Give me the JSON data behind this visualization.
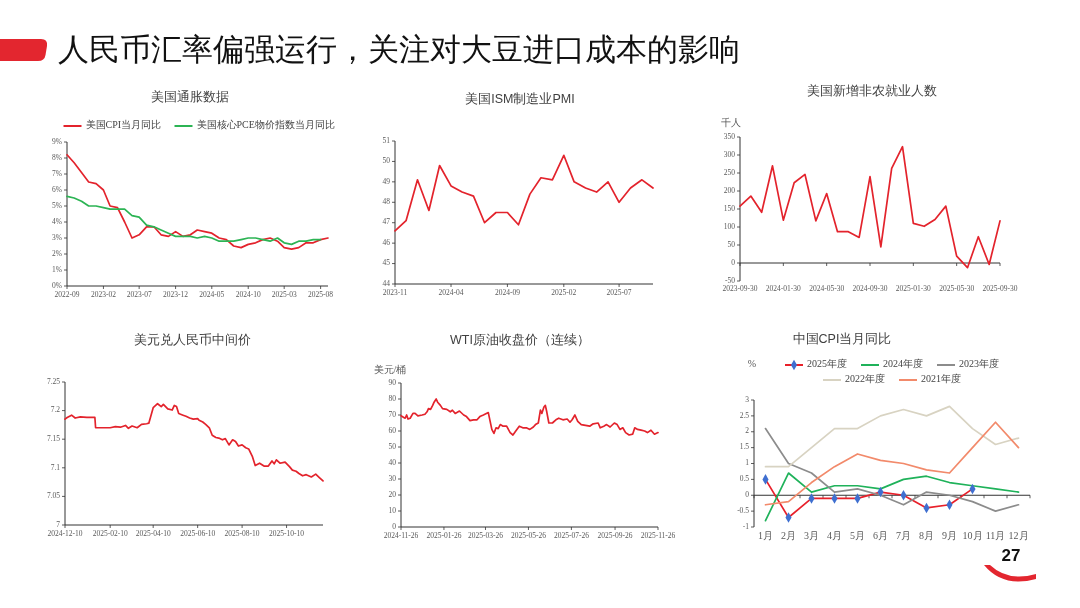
{
  "chart_data": [
    {
      "type": "other",
      "title": "人民币汇率偏强运行，关注对大豆进口成本的影响",
      "annotations": [
        "27"
      ]
    },
    {
      "type": "line",
      "title": "美国通胀数据",
      "legend": "top",
      "x": [
        "2022-09",
        "2022-10",
        "2022-11",
        "2022-12",
        "2023-01",
        "2023-02",
        "2023-03",
        "2023-04",
        "2023-05",
        "2023-06",
        "2023-07",
        "2023-08",
        "2023-09",
        "2023-10",
        "2023-11",
        "2023-12",
        "2024-01",
        "2024-02",
        "2024-03",
        "2024-04",
        "2024-05",
        "2024-06",
        "2024-07",
        "2024-08",
        "2024-09",
        "2024-10",
        "2024-11",
        "2024-12",
        "2025-01",
        "2025-02",
        "2025-03",
        "2025-04",
        "2025-05",
        "2025-06",
        "2025-07",
        "2025-08",
        "2025-09"
      ],
      "series": [
        {
          "name": "美国CPI当月同比",
          "color": "#e3232c",
          "values": [
            8.2,
            7.7,
            7.1,
            6.5,
            6.4,
            6.0,
            5.0,
            4.9,
            4.0,
            3.0,
            3.2,
            3.7,
            3.7,
            3.2,
            3.1,
            3.4,
            3.1,
            3.2,
            3.5,
            3.4,
            3.3,
            3.0,
            2.9,
            2.5,
            2.4,
            2.6,
            2.7,
            2.9,
            3.0,
            2.8,
            2.4,
            2.3,
            2.4,
            2.7,
            2.7,
            2.9,
            3.0
          ]
        },
        {
          "name": "美国核心PCE物价指数当月同比",
          "color": "#2cb454",
          "values": [
            5.6,
            5.5,
            5.3,
            5.0,
            5.0,
            4.9,
            4.8,
            4.8,
            4.8,
            4.4,
            4.3,
            3.8,
            3.7,
            3.5,
            3.3,
            3.1,
            3.1,
            3.1,
            3.0,
            3.1,
            3.0,
            2.8,
            2.8,
            2.8,
            2.9,
            3.0,
            3.0,
            2.9,
            2.8,
            3.0,
            2.7,
            2.6,
            2.8,
            2.8,
            2.9,
            2.9,
            null
          ]
        }
      ],
      "xlim": [
        "2022-09",
        "2025-09"
      ],
      "xticks": [
        "2022-09",
        "2023-02",
        "2023-07",
        "2023-12",
        "2024-05",
        "2024-10",
        "2025-03",
        "2025-08"
      ],
      "ylim": [
        0,
        9
      ],
      "yticks": [
        {
          "value": 0,
          "label": "0%"
        },
        {
          "value": 1,
          "label": "1%"
        },
        {
          "value": 2,
          "label": "2%"
        },
        {
          "value": 3,
          "label": "3%"
        },
        {
          "value": 4,
          "label": "4%"
        },
        {
          "value": 5,
          "label": "5%"
        },
        {
          "value": 6,
          "label": "6%"
        },
        {
          "value": 7,
          "label": "7%"
        },
        {
          "value": 8,
          "label": "8%"
        },
        {
          "value": 9,
          "label": "9%"
        }
      ]
    },
    {
      "type": "line",
      "title": "美国ISM制造业PMI",
      "color": "#e3232c",
      "x": [
        "2023-11",
        "2023-12",
        "2024-01",
        "2024-02",
        "2024-03",
        "2024-04",
        "2024-05",
        "2024-06",
        "2024-07",
        "2024-08",
        "2024-09",
        "2024-10",
        "2024-11",
        "2024-12",
        "2025-01",
        "2025-02",
        "2025-03",
        "2025-04",
        "2025-05",
        "2025-06",
        "2025-07",
        "2025-08",
        "2025-09",
        "2025-10"
      ],
      "values": [
        46.6,
        47.1,
        49.1,
        47.6,
        49.8,
        48.8,
        48.5,
        48.3,
        47.0,
        47.5,
        47.5,
        46.9,
        48.4,
        49.2,
        49.1,
        50.3,
        49.0,
        48.7,
        48.5,
        49.0,
        48.0,
        48.7,
        49.1,
        48.7
      ],
      "xlim": [
        "2023-11",
        "2025-10"
      ],
      "xticks": [
        "2023-11",
        "2024-04",
        "2024-09",
        "2025-02",
        "2025-07"
      ],
      "ylim": [
        44,
        51
      ],
      "yticks": [
        44,
        45,
        46,
        47,
        48,
        49,
        50,
        51
      ]
    },
    {
      "type": "line",
      "title": "美国新增非农就业人数",
      "ylabel": "千人",
      "color": "#e3232c",
      "categories": [
        "2023-09-30",
        null,
        null,
        null,
        "2024-01-30",
        null,
        null,
        null,
        "2024-05-30",
        null,
        null,
        null,
        "2024-09-30",
        null,
        null,
        null,
        "2025-01-30",
        null,
        null,
        null,
        "2025-05-30",
        null,
        null,
        null,
        "2025-09-30"
      ],
      "values": [
        158,
        186,
        141,
        270,
        119,
        223,
        246,
        117,
        193,
        87,
        87,
        71,
        240,
        45,
        263,
        323,
        110,
        102,
        121,
        158,
        19,
        -13,
        73,
        -4,
        117
      ],
      "ylim": [
        -50,
        350
      ],
      "yticks": [
        -50,
        0,
        50,
        100,
        150,
        200,
        250,
        300,
        350
      ]
    },
    {
      "type": "line",
      "title": "美元兑人民币中间价",
      "color": "#e3232c",
      "x": [
        "2024-12-10",
        "2024-12-13",
        "2024-12-19",
        "2024-12-24",
        "2024-12-31",
        "2025-01-09",
        "2025-01-20",
        "2025-01-21",
        "2025-02-01",
        "2025-02-10",
        "2025-02-17",
        "2025-02-24",
        "2025-03-03",
        "2025-03-07",
        "2025-03-12",
        "2025-03-19",
        "2025-03-25",
        "2025-04-01",
        "2025-04-04",
        "2025-04-10",
        "2025-04-16",
        "2025-04-21",
        "2025-04-24",
        "2025-04-30",
        "2025-05-06",
        "2025-05-09",
        "2025-05-12",
        "2025-05-15",
        "2025-05-21",
        "2025-05-25",
        "2025-05-30",
        "2025-06-04",
        "2025-06-10",
        "2025-06-12",
        "2025-06-17",
        "2025-06-21",
        "2025-06-26",
        "2025-06-30",
        "2025-07-05",
        "2025-07-09",
        "2025-07-14",
        "2025-07-18",
        "2025-07-23",
        "2025-07-28",
        "2025-08-01",
        "2025-08-05",
        "2025-08-10",
        "2025-08-15",
        "2025-08-19",
        "2025-08-24",
        "2025-08-28",
        "2025-09-03",
        "2025-09-09",
        "2025-09-15",
        "2025-09-20",
        "2025-09-23",
        "2025-09-26",
        "2025-10-01",
        "2025-10-08",
        "2025-10-14",
        "2025-10-18",
        "2025-10-23",
        "2025-10-27",
        "2025-11-01",
        "2025-11-06",
        "2025-11-13",
        "2025-11-19",
        "2025-11-24",
        "2025-11-29"
      ],
      "values": [
        7.185,
        7.188,
        7.192,
        7.187,
        7.189,
        7.188,
        7.188,
        7.17,
        7.17,
        7.17,
        7.172,
        7.171,
        7.174,
        7.169,
        7.173,
        7.17,
        7.176,
        7.177,
        7.178,
        7.205,
        7.212,
        7.207,
        7.211,
        7.203,
        7.201,
        7.209,
        7.207,
        7.195,
        7.192,
        7.19,
        7.187,
        7.185,
        7.186,
        7.183,
        7.18,
        7.176,
        7.17,
        7.157,
        7.153,
        7.152,
        7.149,
        7.151,
        7.14,
        7.149,
        7.146,
        7.138,
        7.14,
        7.135,
        7.133,
        7.12,
        7.104,
        7.108,
        7.103,
        7.103,
        7.112,
        7.107,
        7.114,
        7.108,
        7.11,
        7.102,
        7.096,
        7.094,
        7.09,
        7.086,
        7.088,
        7.084,
        7.089,
        7.083,
        7.077
      ],
      "xlim": [
        "2024-12-10",
        "2025-11-29"
      ],
      "xticks": [
        "2024-12-10",
        "2025-02-10",
        "2025-04-10",
        "2025-06-10",
        "2025-08-10",
        "2025-10-10"
      ],
      "ylim": [
        7,
        7.25
      ],
      "yticks": [
        7,
        7.05,
        7.1,
        7.15,
        7.2,
        7.25
      ]
    },
    {
      "type": "line",
      "title": "WTI原油收盘价（连续）",
      "ylabel": "美元/桶",
      "color": "#e3232c",
      "x": [
        "2024-11-26",
        "2024-11-30",
        "2024-12-02",
        "2024-12-04",
        "2024-12-06",
        "2024-12-09",
        "2024-12-13",
        "2024-12-16",
        "2024-12-20",
        "2024-12-26",
        "2024-12-30",
        "2025-01-02",
        "2025-01-04",
        "2025-01-07",
        "2025-01-10",
        "2025-01-12",
        "2025-01-15",
        "2025-01-17",
        "2025-01-21",
        "2025-01-24",
        "2025-01-30",
        "2025-02-04",
        "2025-02-07",
        "2025-02-11",
        "2025-02-17",
        "2025-02-23",
        "2025-02-27",
        "2025-03-04",
        "2025-03-09",
        "2025-03-14",
        "2025-03-18",
        "2025-03-23",
        "2025-03-30",
        "2025-04-04",
        "2025-04-07",
        "2025-04-10",
        "2025-04-13",
        "2025-04-16",
        "2025-04-20",
        "2025-04-25",
        "2025-04-30",
        "2025-05-04",
        "2025-05-08",
        "2025-05-13",
        "2025-05-18",
        "2025-05-23",
        "2025-05-28",
        "2025-06-02",
        "2025-06-05",
        "2025-06-09",
        "2025-06-12",
        "2025-06-14",
        "2025-06-17",
        "2025-06-19",
        "2025-06-21",
        "2025-06-24",
        "2025-06-29",
        "2025-07-04",
        "2025-07-08",
        "2025-07-14",
        "2025-07-20",
        "2025-07-24",
        "2025-07-27",
        "2025-07-31",
        "2025-08-04",
        "2025-08-09",
        "2025-08-15",
        "2025-08-21",
        "2025-08-26",
        "2025-09-02",
        "2025-09-05",
        "2025-09-10",
        "2025-09-14",
        "2025-09-19",
        "2025-09-25",
        "2025-09-29",
        "2025-10-03",
        "2025-10-07",
        "2025-10-11",
        "2025-10-16",
        "2025-10-21",
        "2025-10-24",
        "2025-10-28",
        "2025-11-02",
        "2025-11-07",
        "2025-11-11",
        "2025-11-16",
        "2025-11-21",
        "2025-11-26"
      ],
      "values": [
        69.5,
        68.5,
        68,
        70,
        67.5,
        68,
        71,
        71,
        69.5,
        70,
        70.5,
        72,
        74,
        73.5,
        76,
        78,
        80,
        78,
        76,
        74,
        73.5,
        72,
        73,
        71,
        72.5,
        70,
        69,
        66.5,
        67,
        67,
        69,
        70,
        71.5,
        61,
        58.5,
        62,
        61.5,
        64,
        63,
        63,
        59,
        57.5,
        60,
        63,
        62,
        62,
        61,
        62.5,
        64,
        65,
        73,
        71,
        75,
        76,
        72,
        65,
        65,
        67,
        68,
        67,
        67.5,
        65.5,
        67,
        70,
        66,
        64,
        63.5,
        63,
        64.5,
        65,
        62,
        63,
        64,
        62.5,
        65,
        64,
        61,
        62,
        59,
        57.5,
        58,
        62,
        61,
        60.5,
        60,
        59,
        60.5,
        58,
        59
      ],
      "xlim": [
        "2024-11-26",
        "2025-11-26"
      ],
      "xticks": [
        "2024-11-26",
        "2025-01-26",
        "2025-03-26",
        "2025-05-26",
        "2025-07-26",
        "2025-09-26",
        "2025-11-26"
      ],
      "ylim": [
        0,
        90
      ],
      "yticks": [
        0,
        10,
        20,
        30,
        40,
        50,
        60,
        70,
        80,
        90
      ]
    },
    {
      "type": "line",
      "title": "中国CPI当月同比",
      "ylabel": "%",
      "legend": "top",
      "categories": [
        "1月",
        "2月",
        "3月",
        "4月",
        "5月",
        "6月",
        "7月",
        "8月",
        "9月",
        "10月",
        "11月",
        "12月"
      ],
      "series": [
        {
          "name": "2025年度",
          "color": "#e8202a",
          "values": [
            0.5,
            -0.7,
            -0.1,
            -0.1,
            -0.1,
            0.1,
            0,
            -0.4,
            -0.3,
            0.2,
            null,
            null
          ]
        },
        {
          "type": "scatter",
          "marker": "diamond",
          "color": "#3f6fd0",
          "values": [
            0.5,
            -0.7,
            -0.1,
            -0.1,
            -0.1,
            0.1,
            0,
            -0.4,
            -0.3,
            0.2,
            null,
            null
          ]
        },
        {
          "name": "2024年度",
          "color": "#1fb25a",
          "values": [
            -0.8,
            0.7,
            0.1,
            0.3,
            0.3,
            0.2,
            0.5,
            0.6,
            0.4,
            0.3,
            0.2,
            0.1
          ]
        },
        {
          "name": "2023年度",
          "color": "#8c8c8c",
          "values": [
            2.1,
            1.0,
            0.7,
            0.1,
            0.2,
            0.0,
            -0.3,
            0.1,
            0.0,
            -0.2,
            -0.5,
            -0.3
          ]
        },
        {
          "name": "2022年度",
          "color": "#d8d3c2",
          "values": [
            0.9,
            0.9,
            1.5,
            2.1,
            2.1,
            2.5,
            2.7,
            2.5,
            2.8,
            2.1,
            1.6,
            1.8
          ]
        },
        {
          "name": "2021年度",
          "color": "#f28a6b",
          "values": [
            -0.3,
            -0.2,
            0.4,
            0.9,
            1.3,
            1.1,
            1.0,
            0.8,
            0.7,
            1.5,
            2.3,
            1.5
          ]
        }
      ],
      "ylim": [
        -1,
        3
      ],
      "yticks": [
        -1,
        -0.5,
        0,
        0.5,
        1,
        1.5,
        2,
        2.5,
        3
      ]
    }
  ]
}
